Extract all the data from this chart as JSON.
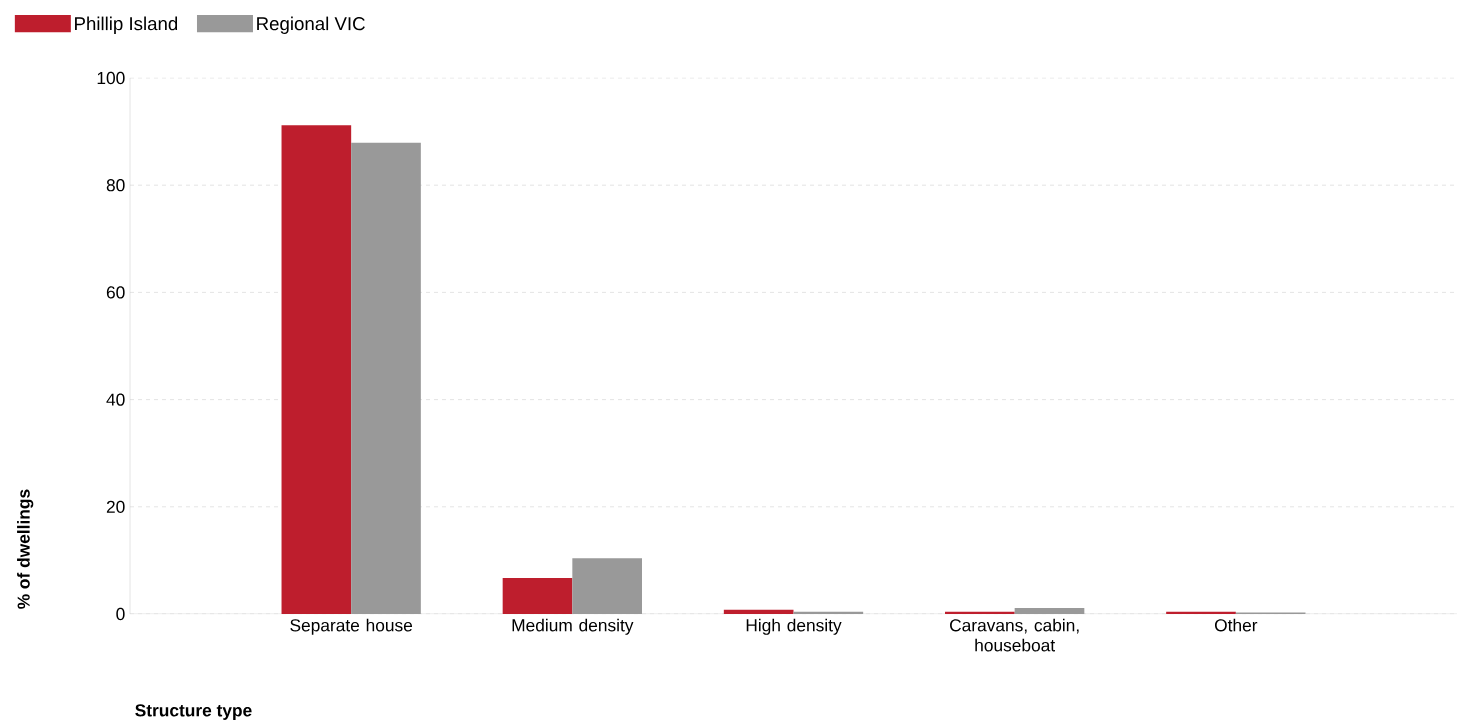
{
  "chart_data": {
    "type": "bar",
    "categories": [
      "Separate house",
      "Medium density",
      "High density",
      "Caravans, cabin, houseboat",
      "Other"
    ],
    "series": [
      {
        "name": "Phillip Island",
        "color": "#be1e2d",
        "values": [
          91.2,
          6.7,
          0.8,
          0.4,
          0.4
        ]
      },
      {
        "name": "Regional VIC",
        "color": "#999999",
        "values": [
          87.9,
          10.4,
          0.4,
          1.1,
          0.3
        ]
      }
    ],
    "ylim": [
      0,
      100
    ],
    "yticks": [
      0,
      20,
      40,
      60,
      80,
      100
    ],
    "ylabel": "% of dwellings",
    "xlabel": "Structure type",
    "grid": "y",
    "legend": "top left"
  }
}
